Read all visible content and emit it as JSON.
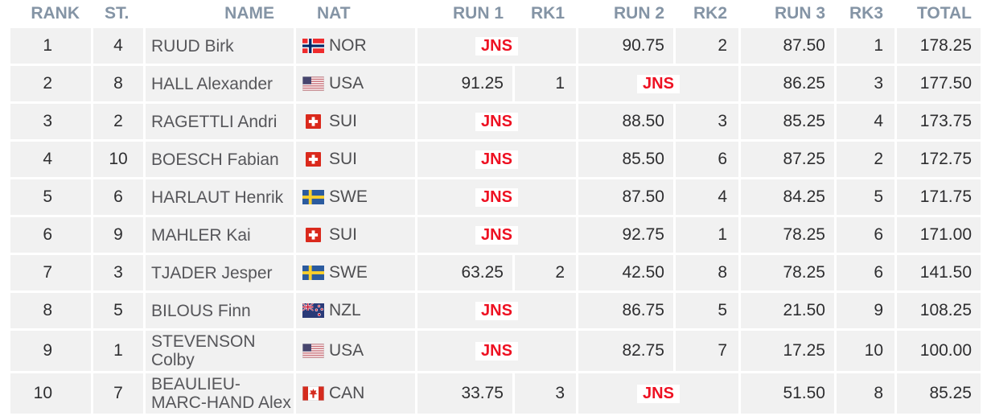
{
  "table": {
    "jns_label": "JNS",
    "columns": [
      {
        "key": "rank",
        "label": "RANK"
      },
      {
        "key": "st",
        "label": "ST."
      },
      {
        "key": "name",
        "label": "NAME"
      },
      {
        "key": "nat",
        "label": "NAT"
      },
      {
        "key": "run1",
        "label": "RUN 1"
      },
      {
        "key": "rk1",
        "label": "RK1"
      },
      {
        "key": "run2",
        "label": "RUN 2"
      },
      {
        "key": "rk2",
        "label": "RK2"
      },
      {
        "key": "run3",
        "label": "RUN 3"
      },
      {
        "key": "rk3",
        "label": "RK3"
      },
      {
        "key": "total",
        "label": "TOTAL"
      }
    ],
    "rows": [
      {
        "rank": "1",
        "st": "4",
        "name": "RUUD Birk",
        "nat": "NOR",
        "run1": "JNS",
        "rk1": "",
        "run2": "90.75",
        "rk2": "2",
        "run3": "87.50",
        "rk3": "1",
        "total": "178.25"
      },
      {
        "rank": "2",
        "st": "8",
        "name": "HALL Alexander",
        "nat": "USA",
        "run1": "91.25",
        "rk1": "1",
        "run2": "JNS",
        "rk2": "",
        "run3": "86.25",
        "rk3": "3",
        "total": "177.50"
      },
      {
        "rank": "3",
        "st": "2",
        "name": "RAGETTLI Andri",
        "nat": "SUI",
        "run1": "JNS",
        "rk1": "",
        "run2": "88.50",
        "rk2": "3",
        "run3": "85.25",
        "rk3": "4",
        "total": "173.75"
      },
      {
        "rank": "4",
        "st": "10",
        "name": "BOESCH Fabian",
        "nat": "SUI",
        "run1": "JNS",
        "rk1": "",
        "run2": "85.50",
        "rk2": "6",
        "run3": "87.25",
        "rk3": "2",
        "total": "172.75"
      },
      {
        "rank": "5",
        "st": "6",
        "name": "HARLAUT Henrik",
        "nat": "SWE",
        "run1": "JNS",
        "rk1": "",
        "run2": "87.50",
        "rk2": "4",
        "run3": "84.25",
        "rk3": "5",
        "total": "171.75"
      },
      {
        "rank": "6",
        "st": "9",
        "name": "MAHLER Kai",
        "nat": "SUI",
        "run1": "JNS",
        "rk1": "",
        "run2": "92.75",
        "rk2": "1",
        "run3": "78.25",
        "rk3": "6",
        "total": "171.00"
      },
      {
        "rank": "7",
        "st": "3",
        "name": "TJADER Jesper",
        "nat": "SWE",
        "run1": "63.25",
        "rk1": "2",
        "run2": "42.50",
        "rk2": "8",
        "run3": "78.25",
        "rk3": "6",
        "total": "141.50"
      },
      {
        "rank": "8",
        "st": "5",
        "name": "BILOUS Finn",
        "nat": "NZL",
        "run1": "JNS",
        "rk1": "",
        "run2": "86.75",
        "rk2": "5",
        "run3": "21.50",
        "rk3": "9",
        "total": "108.25"
      },
      {
        "rank": "9",
        "st": "1",
        "name": "STEVENSON Colby",
        "nat": "USA",
        "run1": "JNS",
        "rk1": "",
        "run2": "82.75",
        "rk2": "7",
        "run3": "17.25",
        "rk3": "10",
        "total": "100.00"
      },
      {
        "rank": "10",
        "st": "7",
        "name": "BEAULIEU-MARCHAND Alex",
        "name_display": "BEAULIEU-MARC-HAND Alex",
        "nat": "CAN",
        "run1": "33.75",
        "rk1": "3",
        "run2": "JNS",
        "rk2": "",
        "run3": "51.50",
        "rk3": "8",
        "total": "85.25"
      }
    ]
  },
  "colors": {
    "header_text": "#8494A5",
    "row_background": "#f1f1f1",
    "name_text": "#56565a",
    "value_text": "#2e2e30",
    "jns_text": "#ee1122",
    "jns_background": "#ffffff"
  }
}
